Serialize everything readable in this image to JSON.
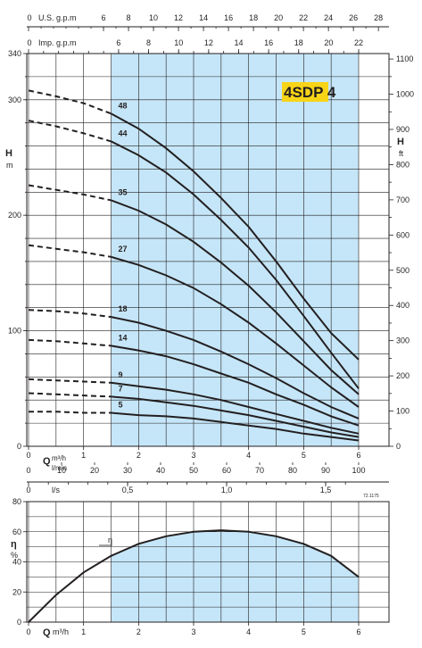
{
  "chart_data": [
    {
      "type": "line",
      "title": "4SDP 4",
      "reference": "72.1175",
      "x_unit": "m³/h",
      "xlim": [
        0,
        6
      ],
      "operating_range": [
        1.5,
        6
      ],
      "ylim": [
        0,
        340
      ],
      "y_unit": "m",
      "ylabel_left": "H m",
      "ylabel_right": "H ft",
      "xticks_m3h": [
        "0",
        "1",
        "2",
        "3",
        "4",
        "5",
        "6"
      ],
      "xlabel_q": "Q",
      "xticks_lmin": [
        "0",
        "10",
        "20",
        "30",
        "40",
        "50",
        "60",
        "70",
        "80",
        "90",
        "100"
      ],
      "xunit_lmin": "l/min",
      "xticks_ls": [
        "0",
        "0,5",
        "1,0",
        "1,5"
      ],
      "xunit_ls": "l/s",
      "xticks_usgpm": [
        "0",
        "6",
        "8",
        "10",
        "12",
        "14",
        "16",
        "18",
        "20",
        "22",
        "24",
        "26",
        "28"
      ],
      "xunit_usgpm": "U.S. g.p.m",
      "xticks_impgpm": [
        "0",
        "6",
        "8",
        "10",
        "12",
        "14",
        "16",
        "18",
        "20",
        "22"
      ],
      "xunit_impgpm": "Imp. g.p.m",
      "yticks_m": [
        "0",
        "100",
        "200",
        "300",
        "340"
      ],
      "yticks_ft": [
        "0",
        "100",
        "200",
        "300",
        "400",
        "500",
        "600",
        "700",
        "800",
        "900",
        "1000",
        "1100"
      ],
      "series": [
        {
          "name": "48",
          "x": [
            0,
            0.5,
            1.0,
            1.5,
            2.0,
            2.5,
            3.0,
            3.5,
            4.0,
            4.5,
            5.0,
            5.5,
            6.0
          ],
          "values": [
            308,
            303,
            297,
            288,
            275,
            258,
            238,
            215,
            190,
            160,
            128,
            98,
            75
          ]
        },
        {
          "name": "44",
          "x": [
            0,
            0.5,
            1.0,
            1.5,
            2.0,
            2.5,
            3.0,
            3.5,
            4.0,
            4.5,
            5.0,
            5.5,
            6.0
          ],
          "values": [
            282,
            277,
            271,
            264,
            252,
            237,
            218,
            196,
            172,
            144,
            113,
            81,
            50
          ]
        },
        {
          "name": "35",
          "x": [
            0,
            0.5,
            1.0,
            1.5,
            2.0,
            2.5,
            3.0,
            3.5,
            4.0,
            4.5,
            5.0,
            5.5,
            6.0
          ],
          "values": [
            226,
            222,
            218,
            213,
            204,
            192,
            177,
            159,
            139,
            116,
            91,
            66,
            45
          ]
        },
        {
          "name": "27",
          "x": [
            0,
            0.5,
            1.0,
            1.5,
            2.0,
            2.5,
            3.0,
            3.5,
            4.0,
            4.5,
            5.0,
            5.5,
            6.0
          ],
          "values": [
            174,
            171,
            168,
            164,
            157,
            148,
            137,
            123,
            107,
            89,
            70,
            51,
            34
          ]
        },
        {
          "name": "18",
          "x": [
            0,
            0.5,
            1.0,
            1.5,
            2.0,
            2.5,
            3.0,
            3.5,
            4.0,
            4.5,
            5.0,
            5.5,
            6.0
          ],
          "values": [
            118,
            117,
            115,
            112,
            107,
            100,
            92,
            82,
            71,
            59,
            46,
            34,
            24
          ]
        },
        {
          "name": "14",
          "x": [
            0,
            0.5,
            1.0,
            1.5,
            2.0,
            2.5,
            3.0,
            3.5,
            4.0,
            4.5,
            5.0,
            5.5,
            6.0
          ],
          "values": [
            92,
            91,
            89,
            87,
            83,
            78,
            71,
            63,
            55,
            45,
            36,
            26,
            18
          ]
        },
        {
          "name": "9",
          "x": [
            0,
            0.5,
            1.0,
            1.5,
            2.0,
            2.5,
            3.0,
            3.5,
            4.0,
            4.5,
            5.0,
            5.5,
            6.0
          ],
          "values": [
            58,
            57,
            56,
            55,
            52,
            49,
            45,
            40,
            34,
            28,
            22,
            16,
            11
          ]
        },
        {
          "name": "7",
          "x": [
            0,
            0.5,
            1.0,
            1.5,
            2.0,
            2.5,
            3.0,
            3.5,
            4.0,
            4.5,
            5.0,
            5.5,
            6.0
          ],
          "values": [
            46,
            45,
            44,
            43,
            41,
            38,
            35,
            31,
            27,
            22,
            17,
            12,
            8
          ]
        },
        {
          "name": "5",
          "x": [
            0,
            0.5,
            1.0,
            1.5,
            2.0,
            2.5,
            3.0,
            3.5,
            4.0,
            4.5,
            5.0,
            5.5,
            6.0
          ],
          "values": [
            30,
            30,
            29,
            29,
            27,
            26,
            24,
            21,
            18,
            15,
            11,
            8,
            5
          ]
        }
      ],
      "colors": {
        "operating_area": "#c5e6f8",
        "curve": "#231f20"
      }
    },
    {
      "type": "line",
      "x_unit": "m³/h",
      "xlim": [
        0,
        6
      ],
      "operating_range": [
        1.5,
        6
      ],
      "ylim": [
        0,
        80
      ],
      "ylabel": "η %",
      "yticks": [
        "0",
        "20",
        "40",
        "60",
        "80"
      ],
      "xlabel_q": "Q",
      "xticks": [
        "0",
        "1",
        "2",
        "3",
        "4",
        "5",
        "6"
      ],
      "series": [
        {
          "name": "η",
          "x": [
            0,
            0.5,
            1.0,
            1.5,
            2.0,
            2.5,
            3.0,
            3.5,
            4.0,
            4.5,
            5.0,
            5.5,
            6.0
          ],
          "values": [
            0,
            18,
            33,
            44,
            52,
            57,
            60,
            61,
            60,
            57,
            52,
            44,
            30
          ]
        }
      ],
      "colors": {
        "operating_area": "#c5e6f8",
        "curve": "#231f20"
      }
    }
  ]
}
